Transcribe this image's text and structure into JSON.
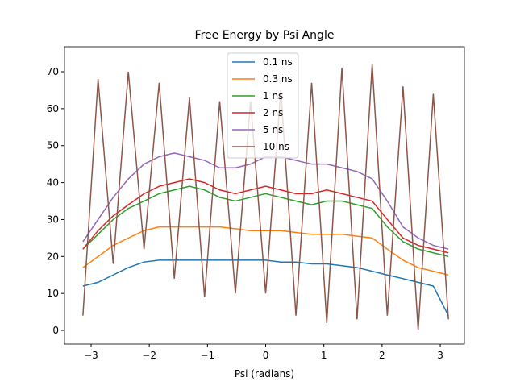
{
  "chart_data": {
    "type": "line",
    "title": "Free Energy by Psi Angle",
    "x_label": "Psi (radians)",
    "x": [
      -3.14,
      -2.88,
      -2.62,
      -2.36,
      -2.09,
      -1.83,
      -1.57,
      -1.31,
      -1.05,
      -0.79,
      -0.52,
      -0.26,
      0,
      0.26,
      0.52,
      0.79,
      1.05,
      1.31,
      1.57,
      1.83,
      2.09,
      2.36,
      2.62,
      2.88,
      3.14
    ],
    "series": [
      {
        "name": "0.1 ns",
        "color": "#1f77b4",
        "values": [
          12,
          13,
          15,
          17,
          18.5,
          19,
          19,
          19,
          19,
          19,
          19,
          19,
          19,
          18.5,
          18.5,
          18,
          18,
          17.5,
          17,
          16,
          15,
          14,
          13,
          12,
          4
        ]
      },
      {
        "name": "0.3 ns",
        "color": "#ff7f0e",
        "values": [
          17,
          20,
          23,
          25,
          27,
          28,
          28,
          28,
          28,
          28,
          27.5,
          27,
          27,
          27,
          26.5,
          26,
          26,
          26,
          25.5,
          25,
          22,
          19,
          17,
          16,
          15
        ]
      },
      {
        "name": "1 ns",
        "color": "#2ca02c",
        "values": [
          22,
          26,
          30,
          33,
          35,
          37,
          38,
          39,
          38,
          36,
          35,
          36,
          37,
          36,
          35,
          34,
          35,
          35,
          34,
          33,
          28,
          24,
          22,
          21,
          20
        ]
      },
      {
        "name": "2 ns",
        "color": "#d62728",
        "values": [
          22,
          27,
          31,
          34,
          37,
          39,
          40,
          41,
          40,
          38,
          37,
          38,
          39,
          38,
          37,
          37,
          38,
          37,
          36,
          35,
          30,
          25,
          23,
          22,
          21
        ]
      },
      {
        "name": "5 ns",
        "color": "#9467bd",
        "values": [
          24,
          30,
          36,
          41,
          45,
          47,
          48,
          47,
          46,
          44,
          44,
          45,
          47,
          47,
          46,
          45,
          45,
          44,
          43,
          41,
          35,
          28,
          25,
          23,
          22
        ]
      },
      {
        "name": "10 ns",
        "color": "#8c564b",
        "values": [
          4,
          68,
          18,
          70,
          22,
          67,
          14,
          63,
          9,
          62,
          10,
          62,
          10,
          65,
          4,
          67,
          2,
          71,
          3,
          72,
          4,
          66,
          0,
          64,
          3
        ]
      }
    ],
    "xlim": [
      -3.457,
      3.415
    ],
    "ylim": [
      -3.7,
      76.76
    ],
    "xticks": [
      {
        "value": -3,
        "label": "−3"
      },
      {
        "value": -2,
        "label": "−2"
      },
      {
        "value": -1,
        "label": "−1"
      },
      0,
      1,
      2,
      3
    ],
    "yticks": [
      0,
      10,
      20,
      30,
      40,
      50,
      60,
      70
    ],
    "legend": "upper center"
  }
}
